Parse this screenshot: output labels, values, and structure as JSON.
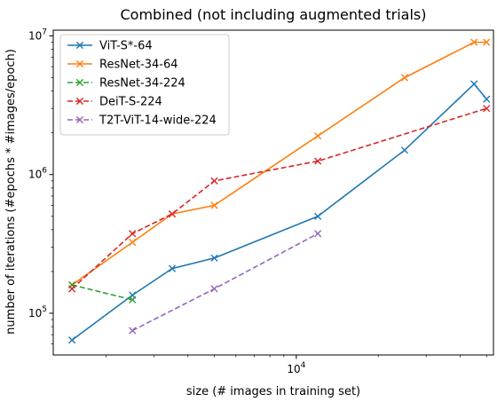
{
  "chart_data": {
    "type": "line",
    "title": "Combined (not including augmented trials)",
    "xlabel": "size (# images in training set)",
    "ylabel": "number of iterations (#epochs * #images/epoch)",
    "xscale": "log",
    "yscale": "log",
    "xlim": [
      1280,
      53000
    ],
    "ylim": [
      50000,
      11000000
    ],
    "x_tick_labels": [
      {
        "value": 10000,
        "label": "10^4"
      }
    ],
    "y_tick_labels": [
      {
        "value": 100000,
        "label": "10^5"
      },
      {
        "value": 1000000,
        "label": "10^6"
      },
      {
        "value": 10000000,
        "label": "10^7"
      }
    ],
    "grid": false,
    "legend": "top-left",
    "series": [
      {
        "name": "ViT-S*-64",
        "color": "#1f77b4",
        "linestyle": "solid",
        "marker": "x",
        "x": [
          1500,
          2500,
          3500,
          5000,
          12000,
          25000,
          45000,
          50000
        ],
        "y": [
          64000,
          135000,
          210000,
          250000,
          500000,
          1500000,
          4500000,
          3500000
        ]
      },
      {
        "name": "ResNet-34-64",
        "color": "#ff7f0e",
        "linestyle": "solid",
        "marker": "x",
        "x": [
          1500,
          2500,
          3500,
          5000,
          12000,
          25000,
          45000,
          50000
        ],
        "y": [
          160000,
          325000,
          520000,
          600000,
          1900000,
          5000000,
          9000000,
          9000000
        ]
      },
      {
        "name": "ResNet-34-224",
        "color": "#2ca02c",
        "linestyle": "dashed",
        "marker": "x",
        "x": [
          1500,
          2500
        ],
        "y": [
          160000,
          125000
        ]
      },
      {
        "name": "DeiT-S-224",
        "color": "#d62728",
        "linestyle": "dashed",
        "marker": "x",
        "x": [
          1500,
          2500,
          3500,
          5000,
          12000,
          50000
        ],
        "y": [
          150000,
          375000,
          520000,
          900000,
          1250000,
          3000000
        ]
      },
      {
        "name": "T2T-ViT-14-wide-224",
        "color": "#9467bd",
        "linestyle": "dashed",
        "marker": "x",
        "x": [
          2500,
          5000,
          12000
        ],
        "y": [
          75000,
          150000,
          375000
        ]
      }
    ]
  }
}
